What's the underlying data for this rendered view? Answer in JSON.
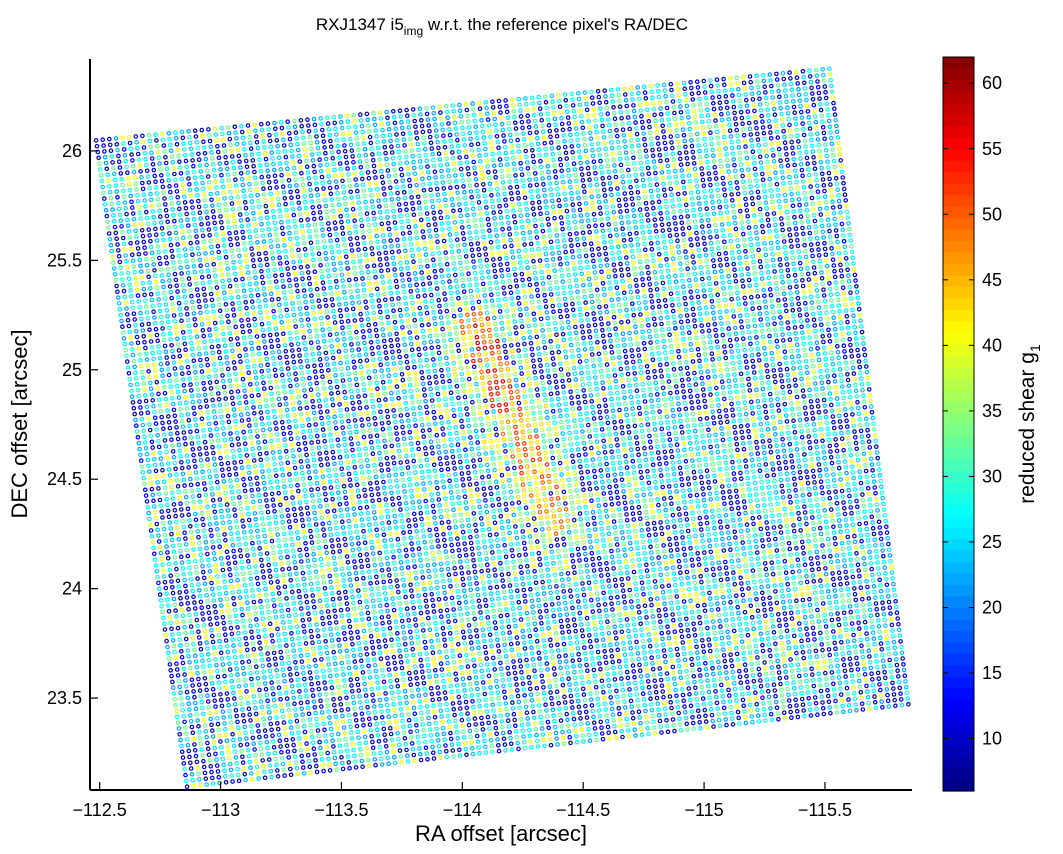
{
  "chart_data": {
    "type": "scatter",
    "title": "RXJ1347 i5",
    "title_subscript": "img",
    "title_rest": " w.r.t. the reference pixel's RA/DEC",
    "xlabel": "RA offset [arcsec]",
    "ylabel": "DEC offset [arcsec]",
    "xlim": [
      -112.46,
      -115.86
    ],
    "ylim": [
      23.08,
      26.42
    ],
    "x_direction": "reversed",
    "xticks": [
      -112.5,
      -113,
      -113.5,
      -114,
      -114.5,
      -115,
      -115.5
    ],
    "xtick_labels": [
      "−112.5",
      "−113",
      "−113.5",
      "−114",
      "−114.5",
      "−115",
      "−115.5"
    ],
    "yticks": [
      23.5,
      24,
      24.5,
      25,
      25.5,
      26
    ],
    "ytick_labels": [
      "23.5",
      "24",
      "24.5",
      "25",
      "25.5",
      "26"
    ],
    "grid": false,
    "marker": "open-circle",
    "region_corners": [
      {
        "ra": -112.47,
        "dec": 26.06
      },
      {
        "ra": -115.53,
        "dec": 26.39
      },
      {
        "ra": -115.86,
        "dec": 23.46
      },
      {
        "ra": -112.85,
        "dec": 23.08
      }
    ],
    "feature": {
      "description_values": "high-shear elongated region",
      "center_start": {
        "ra": -114.05,
        "dec": 25.2
      },
      "center_end": {
        "ra": -114.38,
        "dec": 24.32
      },
      "peak_value": 55
    },
    "colorbar": {
      "label": "reduced shear g",
      "label_subscript": "1",
      "range": [
        6,
        62
      ],
      "ticks": [
        10,
        15,
        20,
        25,
        30,
        35,
        40,
        45,
        50,
        55,
        60
      ],
      "tick_labels": [
        "10",
        "15",
        "20",
        "25",
        "30",
        "35",
        "40",
        "45",
        "50",
        "55",
        "60"
      ],
      "colormap": "jet",
      "levels": 64
    },
    "value_distribution": {
      "background_values": [
        9,
        11,
        22,
        24,
        26,
        27,
        29,
        33,
        40
      ],
      "feature_values": [
        40,
        44,
        47,
        50,
        53,
        56,
        58
      ]
    }
  }
}
